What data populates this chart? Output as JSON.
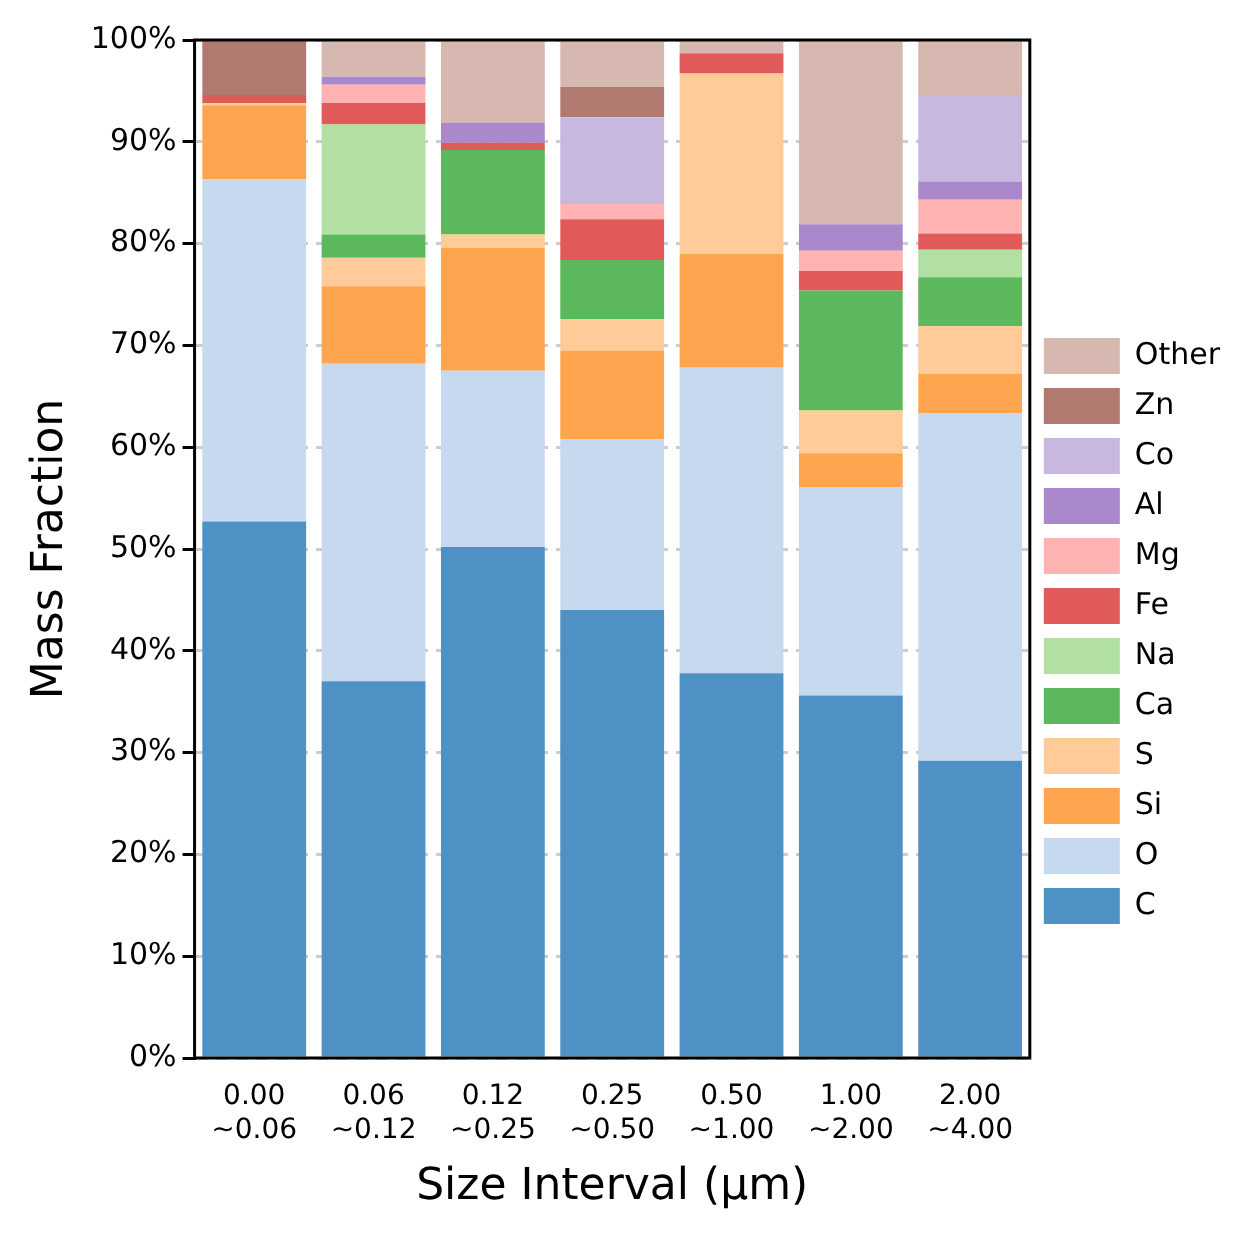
{
  "chart_data": {
    "type": "bar",
    "stacked": true,
    "xlabel": "Size Interval (μm)",
    "ylabel": "Mass Fraction",
    "categories": [
      "0.00 ~0.06",
      "0.06 ~0.12",
      "0.12 ~0.25",
      "0.25 ~0.50",
      "0.50 ~1.00",
      "1.00 ~2.00",
      "2.00 ~4.00"
    ],
    "ylim": [
      0,
      100
    ],
    "yticks": [
      {
        "value": 0,
        "label": "0%"
      },
      {
        "value": 10,
        "label": "10%"
      },
      {
        "value": 20,
        "label": "20%"
      },
      {
        "value": 30,
        "label": "30%"
      },
      {
        "value": 40,
        "label": "40%"
      },
      {
        "value": 50,
        "label": "50%"
      },
      {
        "value": 60,
        "label": "60%"
      },
      {
        "value": 70,
        "label": "70%"
      },
      {
        "value": 80,
        "label": "80%"
      },
      {
        "value": 90,
        "label": "90%"
      },
      {
        "value": 100,
        "label": "100%"
      }
    ],
    "grid": "y",
    "legend": "right",
    "series": [
      {
        "name": "C",
        "color": "#4e91c4",
        "values": [
          52.7,
          37.0,
          50.2,
          44.0,
          37.8,
          35.6,
          29.2
        ]
      },
      {
        "name": "O",
        "color": "#c6d9ef",
        "values": [
          33.6,
          31.2,
          17.3,
          16.8,
          30.0,
          20.5,
          34.1
        ]
      },
      {
        "name": "Si",
        "color": "#ffa54f",
        "values": [
          7.3,
          7.6,
          12.1,
          8.7,
          11.2,
          3.3,
          3.9
        ]
      },
      {
        "name": "S",
        "color": "#ffcc99",
        "values": [
          0.2,
          2.8,
          1.3,
          3.1,
          17.7,
          4.2,
          4.7
        ]
      },
      {
        "name": "Ca",
        "color": "#5cb85c",
        "values": [
          null,
          2.3,
          8.3,
          5.8,
          null,
          11.8,
          4.8
        ]
      },
      {
        "name": "Na",
        "color": "#b2e0a3",
        "values": [
          null,
          10.8,
          null,
          null,
          null,
          null,
          2.7
        ]
      },
      {
        "name": "Fe",
        "color": "#e05a5a",
        "values": [
          0.8,
          2.1,
          0.7,
          4.0,
          2.0,
          1.9,
          1.6
        ]
      },
      {
        "name": "Mg",
        "color": "#ffb3b3",
        "values": [
          null,
          1.8,
          null,
          1.5,
          null,
          2.0,
          3.3
        ]
      },
      {
        "name": "Al",
        "color": "#aa88cc",
        "values": [
          null,
          0.8,
          2.0,
          null,
          null,
          2.6,
          1.8
        ]
      },
      {
        "name": "Co",
        "color": "#c8b8e0",
        "values": [
          null,
          null,
          null,
          8.5,
          null,
          null,
          8.5
        ]
      },
      {
        "name": "Zn",
        "color": "#b07a70",
        "values": [
          5.4,
          null,
          null,
          3.0,
          null,
          null,
          null
        ]
      },
      {
        "name": "Other",
        "color": "#d6b8b0",
        "values": [
          null,
          3.6,
          8.1,
          4.6,
          1.3,
          18.1,
          5.4
        ]
      }
    ]
  }
}
